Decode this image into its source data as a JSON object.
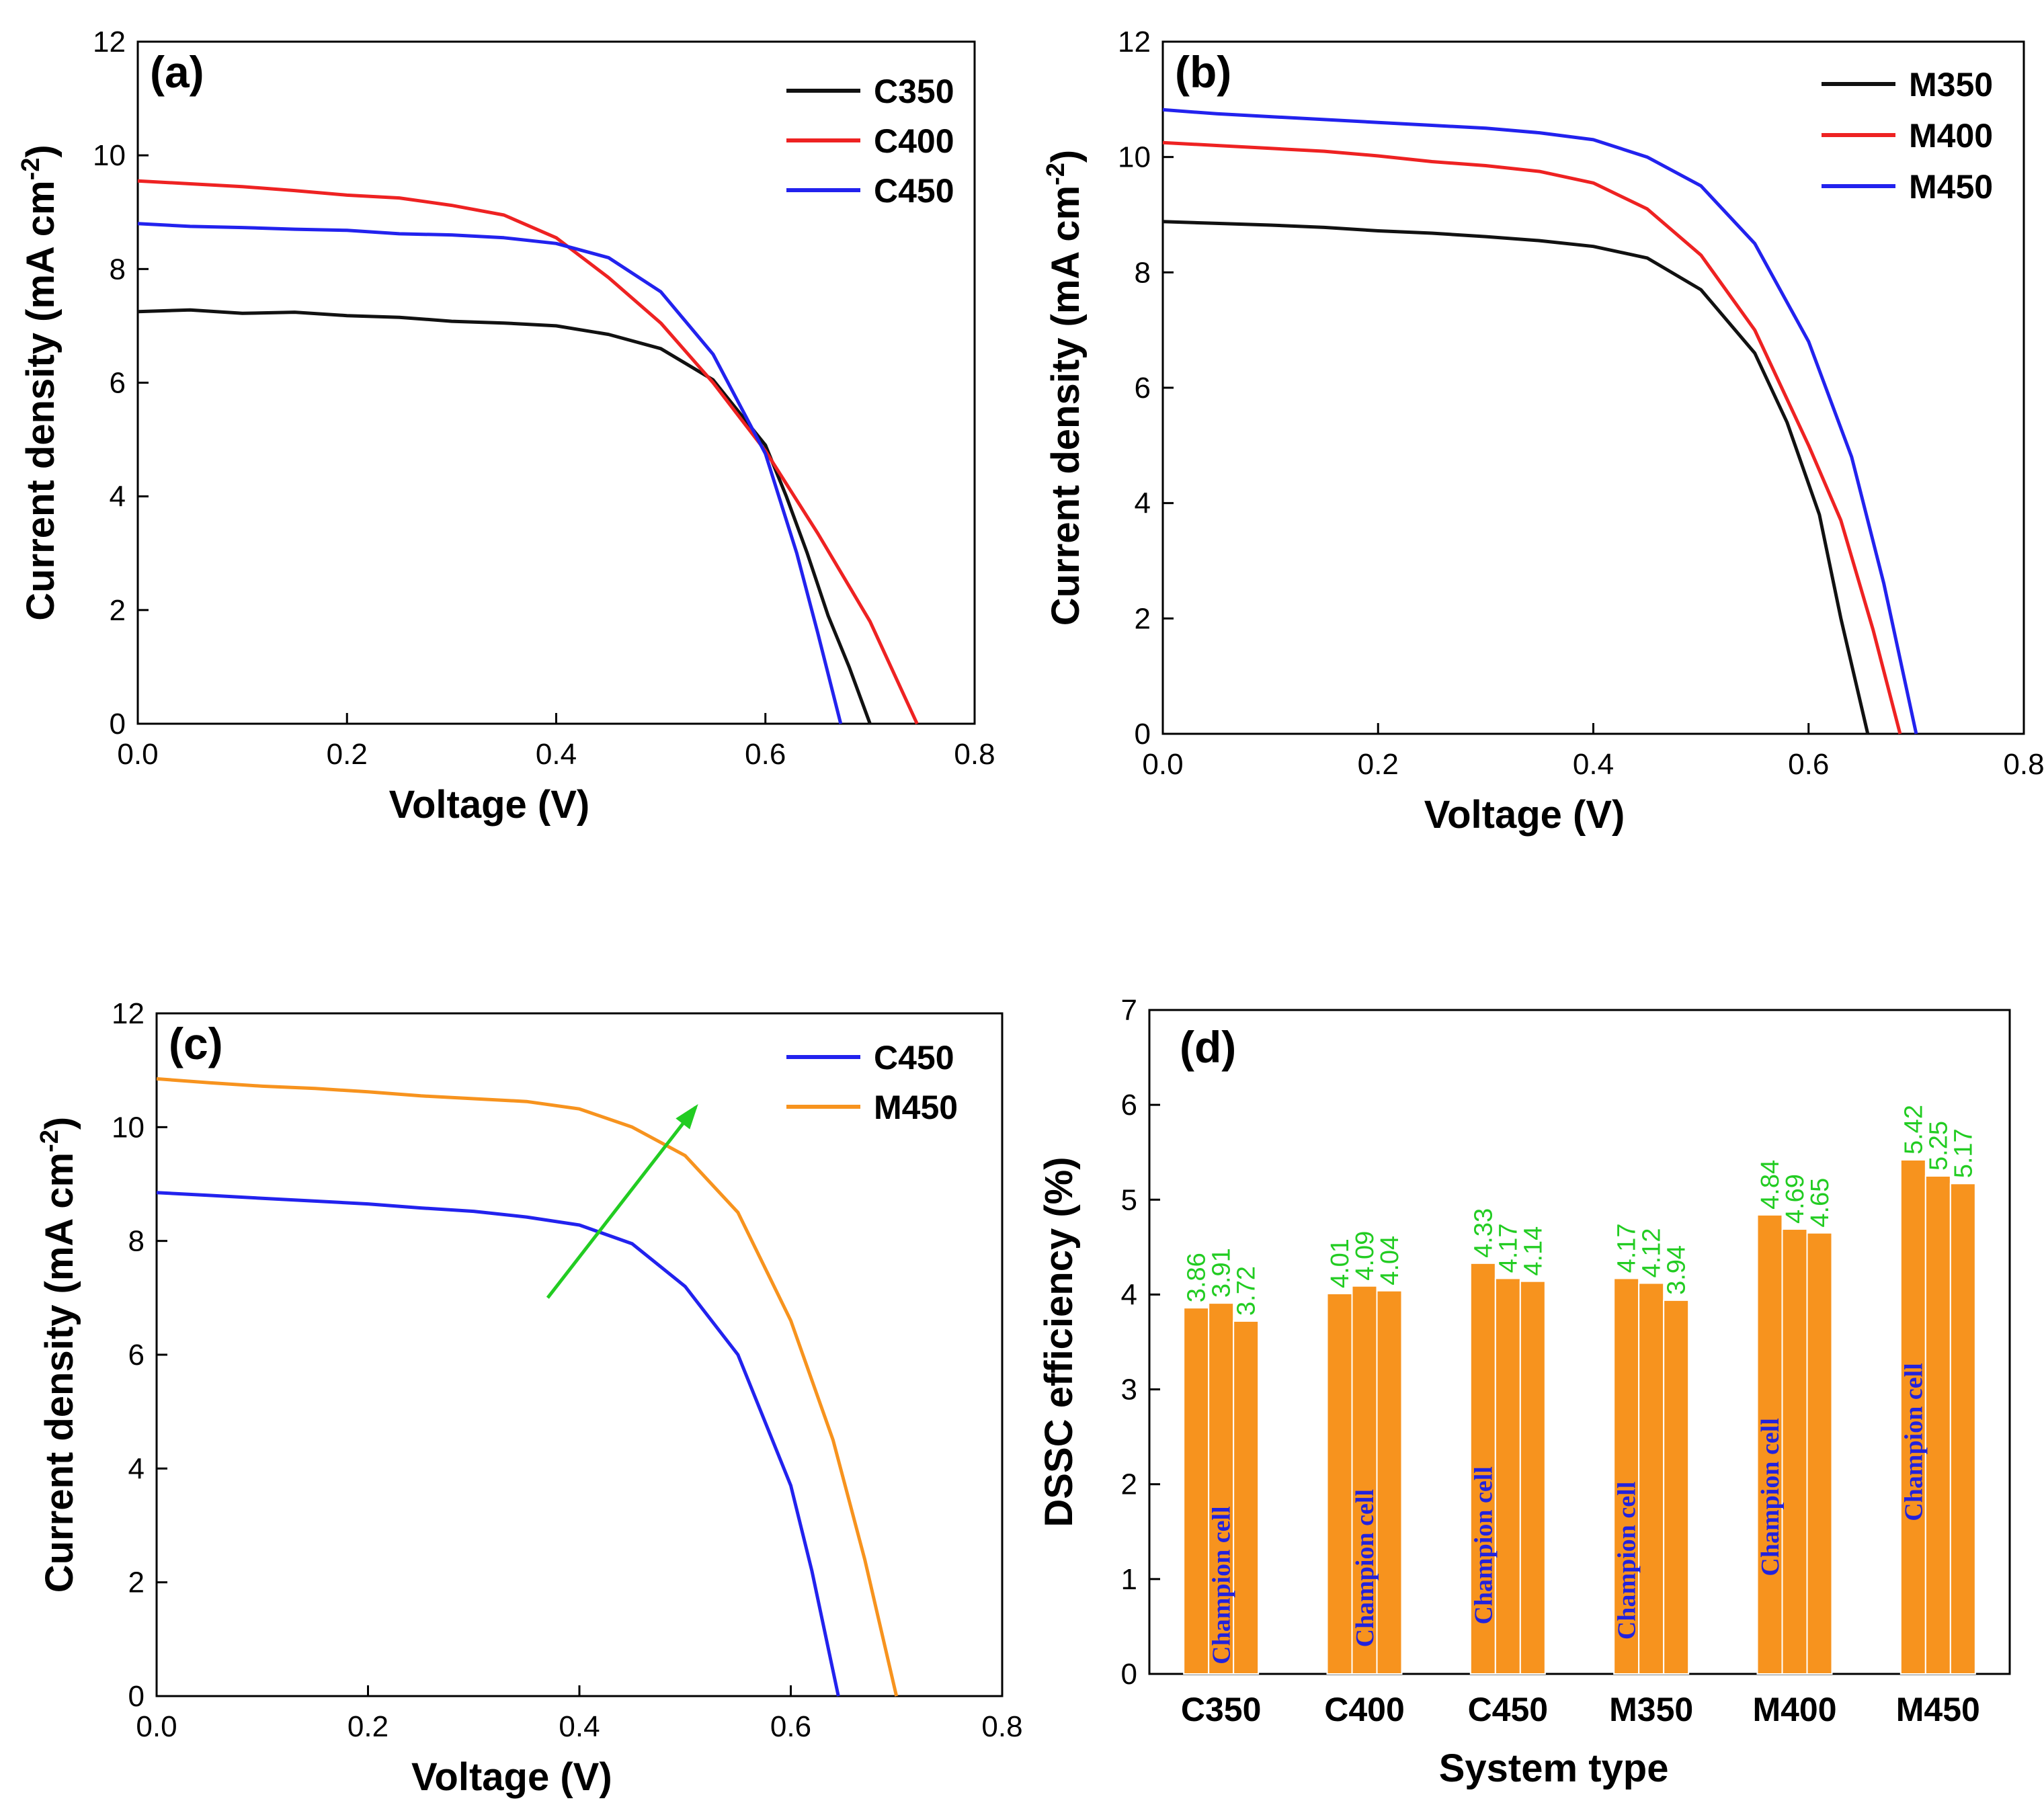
{
  "colors": {
    "black": "#111111",
    "red": "#ee2222",
    "blue": "#2222ee",
    "orange": "#f7931e",
    "green": "#22cc22",
    "champion_text": "#2222dd"
  },
  "chart_data": [
    {
      "panel": "(a)",
      "type": "line",
      "xlabel": "Voltage (V)",
      "ylabel": "Current density (mA cm",
      "ylabel_sup": "-2",
      "ylabel_close": ")",
      "xlim": [
        0,
        0.8
      ],
      "ylim": [
        0,
        12
      ],
      "xticks": [
        "0.0",
        "0.2",
        "0.4",
        "0.6",
        "0.8"
      ],
      "yticks": [
        "0",
        "2",
        "4",
        "6",
        "8",
        "10",
        "12"
      ],
      "series": [
        {
          "name": "C350",
          "color": "#111111",
          "points": [
            [
              0,
              7.25
            ],
            [
              0.05,
              7.28
            ],
            [
              0.1,
              7.22
            ],
            [
              0.15,
              7.24
            ],
            [
              0.2,
              7.18
            ],
            [
              0.25,
              7.15
            ],
            [
              0.3,
              7.08
            ],
            [
              0.35,
              7.05
            ],
            [
              0.4,
              7.0
            ],
            [
              0.45,
              6.85
            ],
            [
              0.5,
              6.6
            ],
            [
              0.55,
              6.05
            ],
            [
              0.6,
              4.9
            ],
            [
              0.62,
              4.0
            ],
            [
              0.64,
              3.0
            ],
            [
              0.66,
              1.9
            ],
            [
              0.68,
              1.0
            ],
            [
              0.7,
              0
            ]
          ]
        },
        {
          "name": "C400",
          "color": "#ee2222",
          "points": [
            [
              0,
              9.55
            ],
            [
              0.05,
              9.5
            ],
            [
              0.1,
              9.45
            ],
            [
              0.15,
              9.38
            ],
            [
              0.2,
              9.3
            ],
            [
              0.25,
              9.25
            ],
            [
              0.3,
              9.12
            ],
            [
              0.35,
              8.95
            ],
            [
              0.4,
              8.55
            ],
            [
              0.45,
              7.85
            ],
            [
              0.5,
              7.05
            ],
            [
              0.55,
              6.0
            ],
            [
              0.6,
              4.8
            ],
            [
              0.65,
              3.35
            ],
            [
              0.7,
              1.8
            ],
            [
              0.745,
              0
            ]
          ]
        },
        {
          "name": "C450",
          "color": "#2222ee",
          "points": [
            [
              0,
              8.8
            ],
            [
              0.05,
              8.75
            ],
            [
              0.1,
              8.73
            ],
            [
              0.15,
              8.7
            ],
            [
              0.2,
              8.68
            ],
            [
              0.25,
              8.62
            ],
            [
              0.3,
              8.6
            ],
            [
              0.35,
              8.55
            ],
            [
              0.4,
              8.45
            ],
            [
              0.45,
              8.2
            ],
            [
              0.5,
              7.6
            ],
            [
              0.55,
              6.5
            ],
            [
              0.6,
              4.75
            ],
            [
              0.63,
              3.0
            ],
            [
              0.65,
              1.6
            ],
            [
              0.672,
              0
            ]
          ]
        }
      ]
    },
    {
      "panel": "(b)",
      "type": "line",
      "xlabel": "Voltage (V)",
      "ylabel": "Current density (mA cm",
      "ylabel_sup": "-2",
      "ylabel_close": ")",
      "xlim": [
        0,
        0.8
      ],
      "ylim": [
        0,
        12
      ],
      "xticks": [
        "0.0",
        "0.2",
        "0.4",
        "0.6",
        "0.8"
      ],
      "yticks": [
        "0",
        "2",
        "4",
        "6",
        "8",
        "10",
        "12"
      ],
      "series": [
        {
          "name": "M350",
          "color": "#111111",
          "points": [
            [
              0,
              8.88
            ],
            [
              0.05,
              8.85
            ],
            [
              0.1,
              8.82
            ],
            [
              0.15,
              8.78
            ],
            [
              0.2,
              8.72
            ],
            [
              0.25,
              8.68
            ],
            [
              0.3,
              8.62
            ],
            [
              0.35,
              8.55
            ],
            [
              0.4,
              8.45
            ],
            [
              0.45,
              8.25
            ],
            [
              0.5,
              7.7
            ],
            [
              0.55,
              6.6
            ],
            [
              0.58,
              5.4
            ],
            [
              0.61,
              3.8
            ],
            [
              0.63,
              2.0
            ],
            [
              0.655,
              0
            ]
          ]
        },
        {
          "name": "M400",
          "color": "#ee2222",
          "points": [
            [
              0,
              10.25
            ],
            [
              0.05,
              10.2
            ],
            [
              0.1,
              10.15
            ],
            [
              0.15,
              10.1
            ],
            [
              0.2,
              10.02
            ],
            [
              0.25,
              9.92
            ],
            [
              0.3,
              9.85
            ],
            [
              0.35,
              9.75
            ],
            [
              0.4,
              9.55
            ],
            [
              0.45,
              9.1
            ],
            [
              0.5,
              8.3
            ],
            [
              0.55,
              7.0
            ],
            [
              0.6,
              5.0
            ],
            [
              0.63,
              3.7
            ],
            [
              0.66,
              1.8
            ],
            [
              0.685,
              0
            ]
          ]
        },
        {
          "name": "M450",
          "color": "#2222ee",
          "points": [
            [
              0,
              10.82
            ],
            [
              0.05,
              10.75
            ],
            [
              0.1,
              10.7
            ],
            [
              0.15,
              10.65
            ],
            [
              0.2,
              10.6
            ],
            [
              0.25,
              10.55
            ],
            [
              0.3,
              10.5
            ],
            [
              0.35,
              10.42
            ],
            [
              0.4,
              10.3
            ],
            [
              0.45,
              10.0
            ],
            [
              0.5,
              9.5
            ],
            [
              0.55,
              8.5
            ],
            [
              0.6,
              6.8
            ],
            [
              0.64,
              4.8
            ],
            [
              0.67,
              2.6
            ],
            [
              0.7,
              0
            ]
          ]
        }
      ]
    },
    {
      "panel": "(c)",
      "type": "line",
      "xlabel": "Voltage (V)",
      "ylabel": "Current density (mA cm",
      "ylabel_sup": "-2",
      "ylabel_close": ")",
      "xlim": [
        0,
        0.8
      ],
      "ylim": [
        0,
        12
      ],
      "xticks": [
        "0.0",
        "0.2",
        "0.4",
        "0.6",
        "0.8"
      ],
      "yticks": [
        "0",
        "2",
        "4",
        "6",
        "8",
        "10",
        "12"
      ],
      "annotation": "green arrow from C450 toward M450",
      "series": [
        {
          "name": "C450",
          "color": "#2222ee",
          "points": [
            [
              0,
              8.85
            ],
            [
              0.05,
              8.8
            ],
            [
              0.1,
              8.75
            ],
            [
              0.15,
              8.7
            ],
            [
              0.2,
              8.65
            ],
            [
              0.25,
              8.58
            ],
            [
              0.3,
              8.52
            ],
            [
              0.35,
              8.42
            ],
            [
              0.4,
              8.28
            ],
            [
              0.45,
              7.95
            ],
            [
              0.5,
              7.2
            ],
            [
              0.55,
              6.0
            ],
            [
              0.6,
              3.7
            ],
            [
              0.62,
              2.2
            ],
            [
              0.645,
              0
            ]
          ]
        },
        {
          "name": "M450",
          "color": "#f7931e",
          "points": [
            [
              0,
              10.85
            ],
            [
              0.05,
              10.78
            ],
            [
              0.1,
              10.72
            ],
            [
              0.15,
              10.68
            ],
            [
              0.2,
              10.62
            ],
            [
              0.25,
              10.55
            ],
            [
              0.3,
              10.5
            ],
            [
              0.35,
              10.45
            ],
            [
              0.4,
              10.32
            ],
            [
              0.45,
              10.0
            ],
            [
              0.5,
              9.5
            ],
            [
              0.55,
              8.5
            ],
            [
              0.6,
              6.6
            ],
            [
              0.64,
              4.5
            ],
            [
              0.67,
              2.4
            ],
            [
              0.7,
              0
            ]
          ]
        }
      ]
    },
    {
      "panel": "(d)",
      "type": "bar",
      "xlabel": "System type",
      "ylabel": "DSSC efficiency (%)",
      "ylim": [
        0,
        7
      ],
      "yticks": [
        "0",
        "1",
        "2",
        "3",
        "4",
        "5",
        "6",
        "7"
      ],
      "bar_color": "#f7931e",
      "champion_label": "Champion cell",
      "categories": [
        "C350",
        "C400",
        "C450",
        "M350",
        "M400",
        "M450"
      ],
      "values": [
        [
          3.86,
          3.91,
          3.72
        ],
        [
          4.01,
          4.09,
          4.04
        ],
        [
          4.33,
          4.17,
          4.14
        ],
        [
          4.17,
          4.12,
          3.94
        ],
        [
          4.84,
          4.69,
          4.65
        ],
        [
          5.42,
          5.25,
          5.17
        ]
      ],
      "value_labels": [
        [
          "3.86",
          "3.91",
          "3.72"
        ],
        [
          "4.01",
          "4.09",
          "4.04"
        ],
        [
          "4.33",
          "4.17",
          "4.14"
        ],
        [
          "4.17",
          "4.12",
          "3.94"
        ],
        [
          "4.84",
          "4.69",
          "4.65"
        ],
        [
          "5.42",
          "5.25",
          "5.17"
        ]
      ]
    }
  ]
}
